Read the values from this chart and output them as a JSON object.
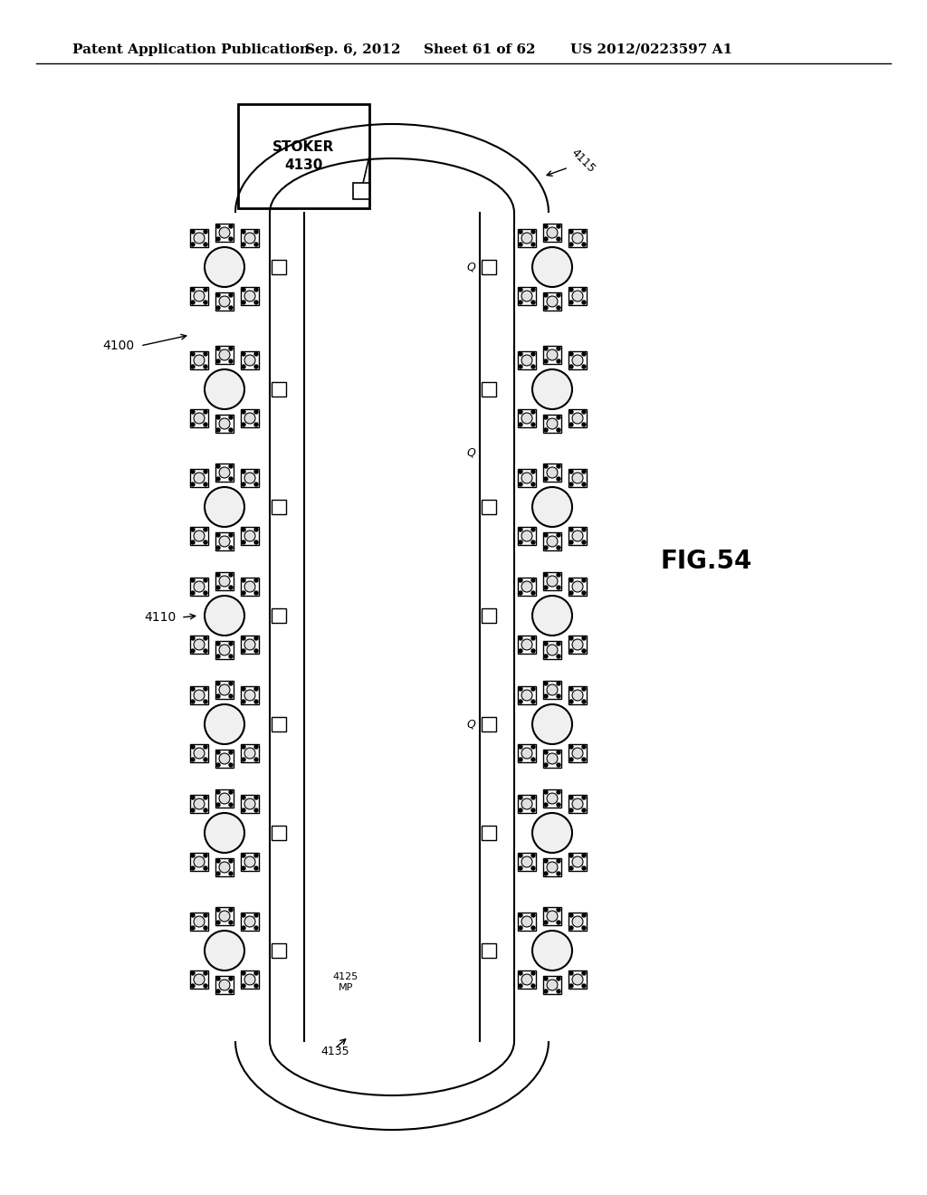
{
  "title_left": "Patent Application Publication",
  "title_mid": "Sep. 6, 2012",
  "title_sheet": "Sheet 61 of 62",
  "title_right": "US 2012/0223597 A1",
  "fig_label": "FIG.54",
  "stoker_label": "STOKER\n4130",
  "label_4100": "4100",
  "label_4110": "4110",
  "label_4125": "4125\nMP",
  "label_4115": "4115",
  "label_4135": "4135",
  "label_Q": "Q",
  "bg_color": "#ffffff",
  "line_color": "#000000",
  "gray_color": "#888888",
  "light_gray": "#cccccc"
}
